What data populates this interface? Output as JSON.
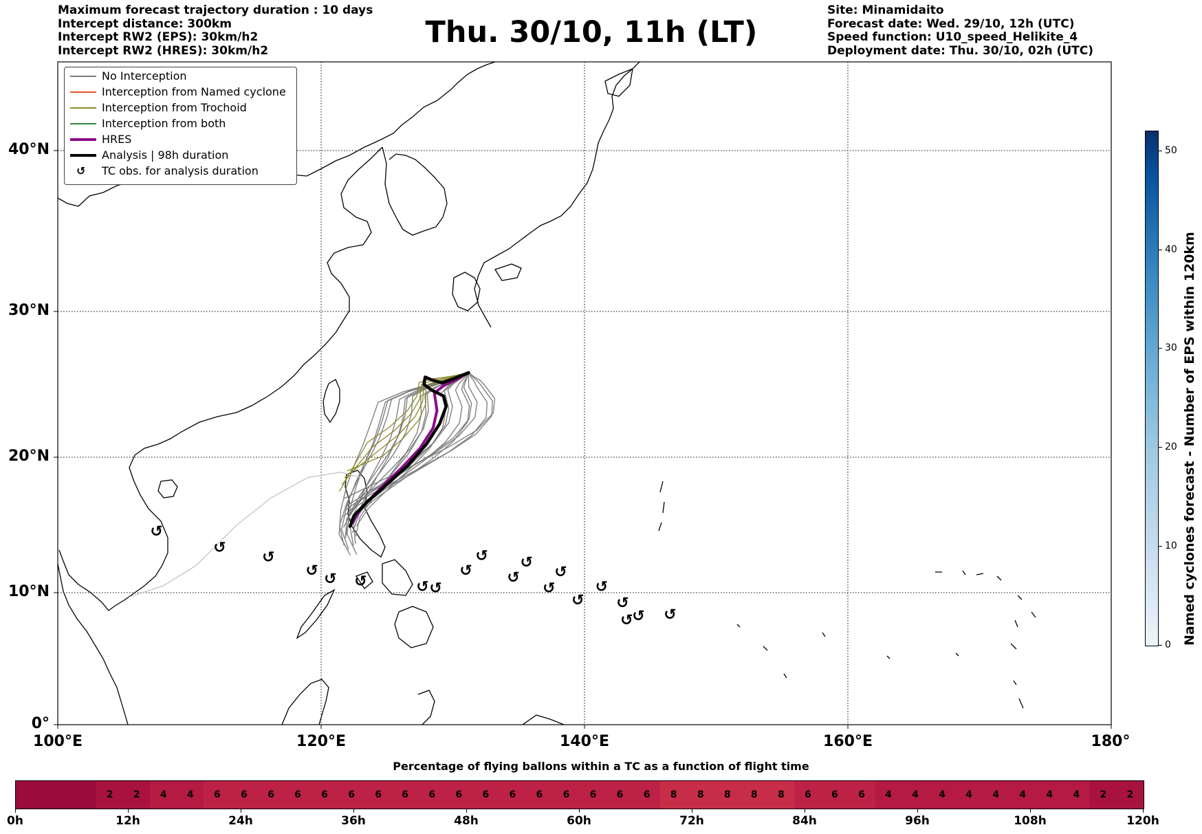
{
  "header_left": [
    "Maximum forecast trajectory duration : 10 days",
    "Intercept distance: 300km",
    "Intercept RW2 (EPS):  30km/h2",
    "Intercept RW2 (HRES): 30km/h2"
  ],
  "title": "Thu. 30/10, 11h (LT)",
  "header_right": [
    "Site: Minamidaito",
    "Forecast date: Wed. 29/10, 12h (UTC)",
    "Speed function: U10_speed_Helikite_4",
    "Deployment date: Thu. 30/10, 02h (UTC)"
  ],
  "map": {
    "extent": {
      "lon": [
        100,
        180
      ],
      "lat": [
        0,
        45
      ]
    },
    "lat_ticks": [
      "0°",
      "10°N",
      "20°N",
      "30°N",
      "40°N"
    ],
    "lon_ticks": [
      "100°E",
      "120°E",
      "140°E",
      "160°E",
      "180°"
    ],
    "gridlines": true,
    "release_site": {
      "name": "Minamidaito",
      "lon": 131.2,
      "lat": 25.8
    },
    "hres_track": [
      [
        131.2,
        25.8
      ],
      [
        130.2,
        25.3
      ],
      [
        129.3,
        24.9
      ],
      [
        128.6,
        24.4
      ],
      [
        128.8,
        23.2
      ],
      [
        128.5,
        22.0
      ],
      [
        127.5,
        20.6
      ],
      [
        126.2,
        19.3
      ],
      [
        124.6,
        17.8
      ],
      [
        123.0,
        16.2
      ],
      [
        122.2,
        14.9
      ]
    ],
    "analysis_track": [
      [
        131.2,
        25.8
      ],
      [
        130.1,
        25.4
      ],
      [
        129.2,
        25.1
      ],
      [
        128.4,
        25.3
      ],
      [
        127.9,
        25.5
      ],
      [
        127.8,
        25.0
      ],
      [
        128.4,
        24.6
      ],
      [
        129.3,
        24.2
      ],
      [
        129.5,
        23.5
      ],
      [
        129.0,
        22.3
      ],
      [
        128.0,
        20.9
      ],
      [
        126.6,
        19.4
      ],
      [
        125.0,
        18.0
      ],
      [
        123.5,
        16.7
      ],
      [
        122.5,
        15.7
      ],
      [
        122.2,
        14.9
      ]
    ],
    "tc_observations": [
      [
        107.5,
        14.5
      ],
      [
        112.3,
        13.3
      ],
      [
        116.0,
        12.6
      ],
      [
        119.3,
        11.6
      ],
      [
        120.7,
        11.0
      ],
      [
        123.0,
        10.8
      ],
      [
        127.7,
        10.4
      ],
      [
        128.7,
        10.3
      ],
      [
        131.0,
        11.6
      ],
      [
        132.2,
        12.7
      ],
      [
        134.6,
        11.1
      ],
      [
        135.6,
        12.2
      ],
      [
        137.3,
        10.3
      ],
      [
        138.2,
        11.5
      ],
      [
        139.5,
        9.4
      ],
      [
        141.3,
        10.4
      ],
      [
        142.9,
        9.2
      ],
      [
        143.2,
        7.9
      ],
      [
        144.1,
        8.2
      ],
      [
        146.5,
        8.3
      ]
    ]
  },
  "legend": [
    {
      "label": "No Interception",
      "color": "#7a7a7a",
      "kind": "line",
      "width": 1.2
    },
    {
      "label": "Interception from Named cyclone",
      "color": "#e8542a",
      "kind": "line",
      "width": 1.2
    },
    {
      "label": "Interception from Trochoid",
      "color": "#8a8a2a",
      "kind": "line",
      "width": 1.2
    },
    {
      "label": "Interception from both",
      "color": "#2e8b3c",
      "kind": "line",
      "width": 1.2
    },
    {
      "label": "HRES",
      "color": "#8b0a8b",
      "kind": "line",
      "width": 4
    },
    {
      "label": "Analysis | 98h duration",
      "color": "#000000",
      "kind": "line",
      "width": 4
    },
    {
      "label": "TC obs. for analysis duration",
      "color": "#000000",
      "kind": "symbol",
      "symbol": "tc-symbol-icon"
    }
  ],
  "colorbar": {
    "title": "Named cyclones forecast - Number of EPS within 120km",
    "ticks": [
      "0",
      "10",
      "20",
      "30",
      "40",
      "50"
    ],
    "range": [
      0,
      52
    ],
    "colors": [
      "#eef4fb",
      "#c6dbef",
      "#9ecae1",
      "#6baed6",
      "#3182bd",
      "#08519c",
      "#08306b"
    ]
  },
  "bottom": {
    "title": "Percentage of flying ballons within a TC as a function of flight time",
    "hour_labels": [
      "0h",
      "12h",
      "24h",
      "36h",
      "48h",
      "60h",
      "72h",
      "84h",
      "96h",
      "108h",
      "120h"
    ],
    "bins": [
      "",
      "",
      "",
      "2",
      "2",
      "4",
      "4",
      "6",
      "6",
      "6",
      "6",
      "6",
      "6",
      "6",
      "6",
      "6",
      "6",
      "6",
      "6",
      "6",
      "6",
      "6",
      "6",
      "6",
      "8",
      "8",
      "8",
      "8",
      "8",
      "6",
      "6",
      "6",
      "4",
      "4",
      "4",
      "4",
      "4",
      "4",
      "4",
      "4",
      "2",
      "2"
    ],
    "colors": {
      "0": "#9b0b3b",
      "2": "#a9123f",
      "4": "#b41a42",
      "6": "#bd2146",
      "8": "#c82d48"
    }
  }
}
